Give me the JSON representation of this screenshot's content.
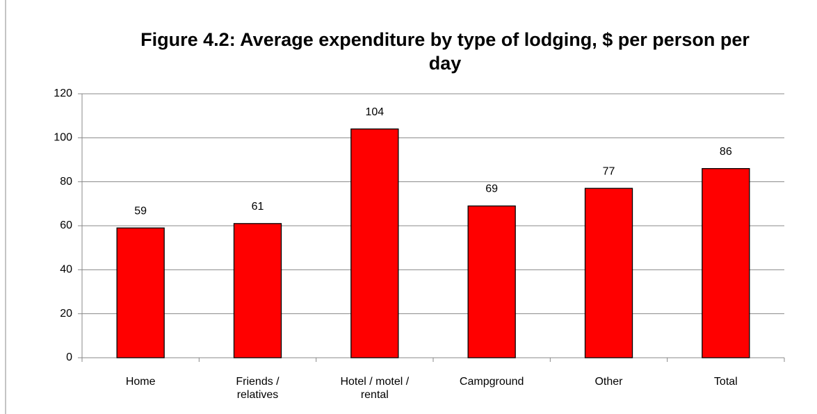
{
  "chart_data": {
    "type": "bar",
    "title": "Figure 4.2: Average expenditure by type of lodging, $ per person per day",
    "categories": [
      "Home",
      "Friends / relatives",
      "Hotel / motel / rental",
      "Campground",
      "Other",
      "Total"
    ],
    "values": [
      59,
      61,
      104,
      69,
      77,
      86
    ],
    "color": "#ff0000",
    "ylim": [
      0,
      120
    ],
    "yticks": [
      0,
      20,
      40,
      60,
      80,
      100,
      120
    ],
    "grid": true
  }
}
